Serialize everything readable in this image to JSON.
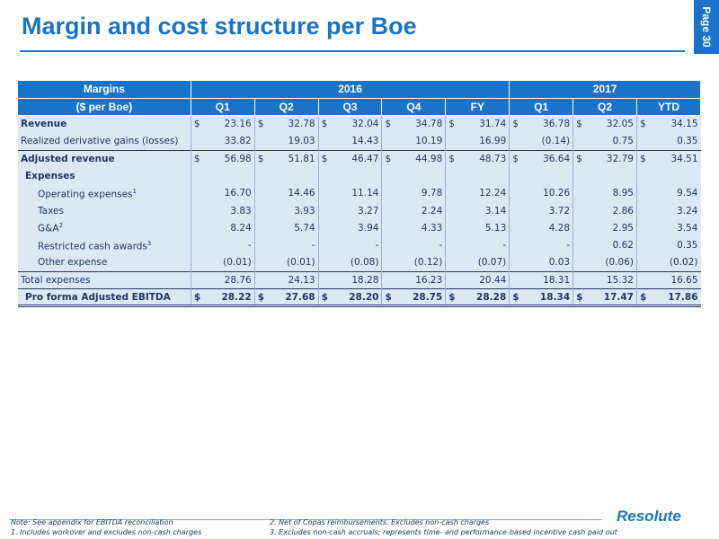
{
  "title": "Margin and cost structure per Boe",
  "page_label": "Page 30",
  "header": {
    "margins_label": "Margins",
    "unit_label": "($ per Boe)",
    "year_2016": "2016",
    "year_2017": "2017",
    "cols": [
      "Q1",
      "Q2",
      "Q3",
      "Q4",
      "FY",
      "Q1",
      "Q2",
      "YTD"
    ]
  },
  "rows": {
    "revenue": {
      "label": "Revenue",
      "cur": "$",
      "values": [
        "23.16",
        "32.78",
        "32.04",
        "34.78",
        "31.74",
        "36.78",
        "32.05",
        "34.15"
      ]
    },
    "realized": {
      "label": "Realized derivative gains (losses)",
      "values": [
        "33.82",
        "19.03",
        "14.43",
        "10.19",
        "16.99",
        "(0.14)",
        "0.75",
        "0.35"
      ]
    },
    "adj_revenue": {
      "label": "Adjusted revenue",
      "cur": "$",
      "values": [
        "56.98",
        "51.81",
        "46.47",
        "44.98",
        "48.73",
        "36.64",
        "32.79",
        "34.51"
      ]
    },
    "expenses": {
      "label": "Expenses"
    },
    "opex": {
      "label": "Operating expenses",
      "sup": "1",
      "values": [
        "16.70",
        "14.46",
        "11.14",
        "9.78",
        "12.24",
        "10.26",
        "8.95",
        "9.54"
      ]
    },
    "taxes": {
      "label": "Taxes",
      "values": [
        "3.83",
        "3.93",
        "3.27",
        "2.24",
        "3.14",
        "3.72",
        "2.86",
        "3.24"
      ]
    },
    "ga": {
      "label": "G&A",
      "sup": "2",
      "values": [
        "8.24",
        "5.74",
        "3.94",
        "4.33",
        "5.13",
        "4.28",
        "2.95",
        "3.54"
      ]
    },
    "rca": {
      "label": "Restricted cash awards",
      "sup": "3",
      "values": [
        "-",
        "-",
        "-",
        "-",
        "-",
        "-",
        "0.62",
        "0.35"
      ]
    },
    "other": {
      "label": "Other expense",
      "values": [
        "(0.01)",
        "(0.01)",
        "(0.08)",
        "(0.12)",
        "(0.07)",
        "0.03",
        "(0.06)",
        "(0.02)"
      ]
    },
    "total": {
      "label": "Total expenses",
      "values": [
        "28.76",
        "24.13",
        "18.28",
        "16.23",
        "20.44",
        "18.31",
        "15.32",
        "16.65"
      ]
    },
    "ebitda": {
      "label": "Pro forma Adjusted EBITDA",
      "cur": "$",
      "values": [
        "28.22",
        "27.68",
        "28.20",
        "28.75",
        "28.28",
        "18.34",
        "17.47",
        "17.86"
      ]
    }
  },
  "notes": {
    "n0": "Note: See appendix for EBITDA reconciliation",
    "n1": "1.    Includes workover and excludes non-cash charges",
    "n2": "2.       Net of Copas reimbursements. Excludes non-cash charges",
    "n3": "3.       Excludes non-cash accruals; represents time- and performance-based incentive cash paid out"
  },
  "logo_text": "Resolute",
  "colors": {
    "accent": "#1a73c9",
    "text": "#1f3864",
    "tint": "#dde8f5"
  }
}
